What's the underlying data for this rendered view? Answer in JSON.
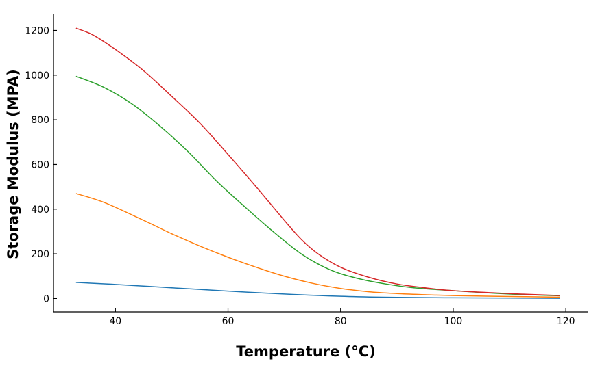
{
  "chart_data": {
    "type": "line",
    "title": "",
    "xlabel": "Temperature (°C)",
    "ylabel": "Storage Modulus (MPA)",
    "xlim": [
      29,
      124
    ],
    "ylim": [
      -60,
      1275
    ],
    "xticks": [
      40,
      60,
      80,
      100,
      120
    ],
    "yticks": [
      0,
      200,
      400,
      600,
      800,
      1000,
      1200
    ],
    "grid": false,
    "legend": "none",
    "series": [
      {
        "color": "#1f77b4",
        "x": [
          33,
          40,
          50,
          60,
          70,
          80,
          90,
          100,
          110,
          119
        ],
        "values": [
          72,
          63,
          48,
          33,
          20,
          10,
          5,
          3,
          2,
          1
        ]
      },
      {
        "color": "#ff7f0e",
        "x": [
          33,
          38,
          45,
          50,
          55,
          60,
          65,
          70,
          75,
          80,
          85,
          90,
          95,
          100,
          110,
          119
        ],
        "values": [
          470,
          430,
          350,
          290,
          235,
          185,
          140,
          100,
          68,
          45,
          30,
          22,
          17,
          13,
          9,
          6
        ]
      },
      {
        "color": "#2ca02c",
        "x": [
          33,
          38,
          43,
          48,
          53,
          58,
          63,
          68,
          73,
          78,
          83,
          88,
          93,
          100,
          110,
          119
        ],
        "values": [
          995,
          945,
          870,
          770,
          655,
          525,
          410,
          300,
          200,
          130,
          90,
          65,
          48,
          35,
          20,
          12
        ]
      },
      {
        "color": "#d62728",
        "x": [
          33,
          36,
          40,
          45,
          50,
          55,
          60,
          65,
          70,
          73,
          76,
          80,
          85,
          90,
          95,
          100,
          110,
          119
        ],
        "values": [
          1210,
          1180,
          1115,
          1020,
          905,
          785,
          645,
          500,
          350,
          265,
          200,
          140,
          95,
          65,
          48,
          35,
          22,
          13
        ]
      }
    ]
  }
}
